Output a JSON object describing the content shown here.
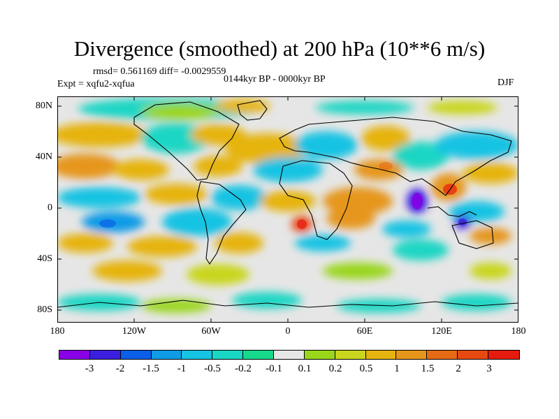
{
  "title": "Divergence (smoothed) at 200 hPa (10**6 m/s)",
  "stats": "rmsd= 0.561169 diff= -0.0029559",
  "experiment": "Expt = xqfu2-xqfua",
  "period": "0144kyr BP - 0000kyr BP",
  "season": "DJF",
  "lat_labels": [
    "80N",
    "40N",
    "0",
    "40S",
    "80S"
  ],
  "lon_labels": [
    "180",
    "120W",
    "60W",
    "0",
    "60E",
    "120E",
    "180"
  ],
  "colorbar": {
    "colors": [
      "#8a00e6",
      "#3b1fe0",
      "#0b5fe8",
      "#0f9be6",
      "#16c3e3",
      "#1ad6c4",
      "#17d98c",
      "#e6e6e6",
      "#9ad61a",
      "#c9d61d",
      "#e6b40f",
      "#e6961a",
      "#e66b14",
      "#e64a12",
      "#e61b0f"
    ],
    "labels": [
      "-3",
      "-2",
      "-1.5",
      "-1",
      "-0.5",
      "-0.2",
      "-0.1",
      "0.1",
      "0.2",
      "0.5",
      "1",
      "1.5",
      "2",
      "3"
    ]
  }
}
